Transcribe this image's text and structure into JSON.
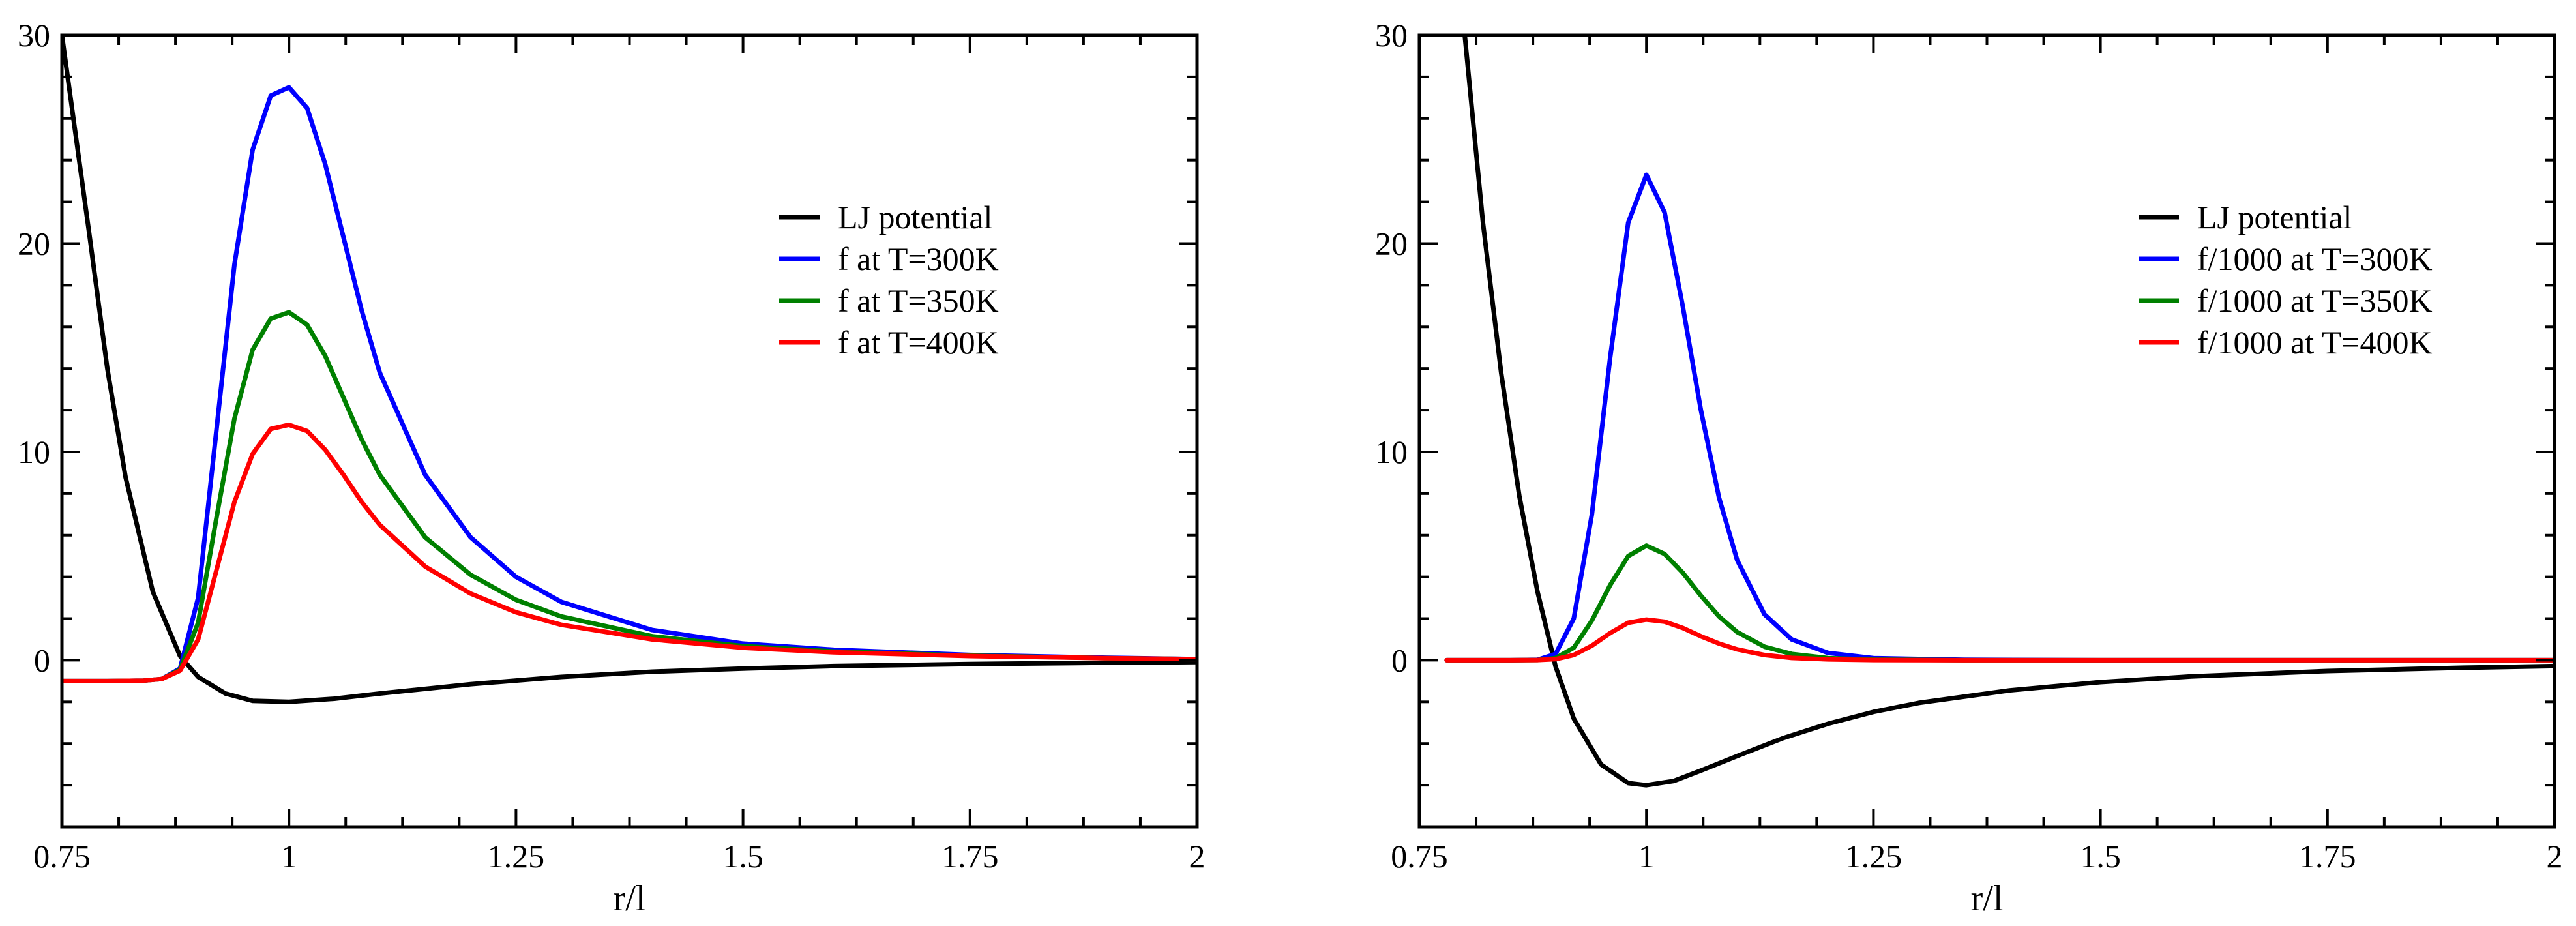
{
  "chart_data": [
    {
      "type": "line",
      "title": "",
      "xlabel": "r/l",
      "ylabel": "",
      "xlim": [
        0.75,
        2
      ],
      "ylim": [
        -8,
        30
      ],
      "xticks": [
        0.75,
        1,
        1.25,
        1.5,
        1.75,
        2
      ],
      "xtick_labels": [
        "0.75",
        "1",
        "1.25",
        "1.5",
        "1.75",
        "2"
      ],
      "yticks": [
        0,
        10,
        20,
        30
      ],
      "ytick_labels": [
        "0",
        "10",
        "20",
        "30"
      ],
      "grid": false,
      "legend_position": "center-right",
      "series": [
        {
          "name": "LJ potential",
          "color": "#000000",
          "x": [
            0.75,
            0.78,
            0.8,
            0.82,
            0.85,
            0.88,
            0.9,
            0.93,
            0.96,
            1.0,
            1.05,
            1.1,
            1.2,
            1.3,
            1.4,
            1.5,
            1.6,
            1.75,
            1.9,
            2.0
          ],
          "y": [
            30.0,
            20.5,
            14.0,
            8.8,
            3.3,
            0.2,
            -0.8,
            -1.6,
            -1.95,
            -2.0,
            -1.85,
            -1.6,
            -1.15,
            -0.8,
            -0.55,
            -0.4,
            -0.28,
            -0.18,
            -0.12,
            -0.09
          ]
        },
        {
          "name": "f at T=300K",
          "color": "#0000ff",
          "x": [
            0.75,
            0.8,
            0.84,
            0.86,
            0.88,
            0.9,
            0.92,
            0.94,
            0.96,
            0.98,
            1.0,
            1.02,
            1.04,
            1.06,
            1.08,
            1.1,
            1.15,
            1.2,
            1.25,
            1.3,
            1.4,
            1.5,
            1.6,
            1.75,
            1.9,
            2.0
          ],
          "y": [
            -1.0,
            -1.0,
            -0.98,
            -0.9,
            -0.4,
            3.0,
            11.0,
            19.0,
            24.5,
            27.1,
            27.5,
            26.5,
            23.8,
            20.3,
            16.8,
            13.8,
            8.9,
            5.9,
            4.0,
            2.8,
            1.45,
            0.8,
            0.5,
            0.25,
            0.12,
            0.05
          ]
        },
        {
          "name": "f at T=350K",
          "color": "#008000",
          "x": [
            0.75,
            0.8,
            0.84,
            0.86,
            0.88,
            0.9,
            0.92,
            0.94,
            0.96,
            0.98,
            1.0,
            1.02,
            1.04,
            1.06,
            1.08,
            1.1,
            1.15,
            1.2,
            1.25,
            1.3,
            1.4,
            1.5,
            1.6,
            1.75,
            1.9,
            2.0
          ],
          "y": [
            -1.0,
            -1.0,
            -0.98,
            -0.9,
            -0.45,
            1.8,
            6.8,
            11.6,
            14.9,
            16.4,
            16.7,
            16.1,
            14.6,
            12.6,
            10.6,
            8.9,
            5.9,
            4.1,
            2.9,
            2.1,
            1.15,
            0.68,
            0.42,
            0.22,
            0.1,
            0.05
          ]
        },
        {
          "name": "f at T=400K",
          "color": "#ff0000",
          "x": [
            0.75,
            0.8,
            0.84,
            0.86,
            0.88,
            0.9,
            0.92,
            0.94,
            0.96,
            0.98,
            1.0,
            1.02,
            1.04,
            1.06,
            1.08,
            1.1,
            1.15,
            1.2,
            1.25,
            1.3,
            1.4,
            1.5,
            1.6,
            1.75,
            1.9,
            2.0
          ],
          "y": [
            -1.0,
            -1.0,
            -0.98,
            -0.9,
            -0.5,
            1.0,
            4.3,
            7.6,
            9.9,
            11.1,
            11.3,
            11.0,
            10.1,
            8.9,
            7.6,
            6.5,
            4.5,
            3.2,
            2.3,
            1.7,
            1.0,
            0.6,
            0.38,
            0.2,
            0.1,
            0.05
          ]
        }
      ]
    },
    {
      "type": "line",
      "title": "",
      "xlabel": "r/l",
      "ylabel": "",
      "xlim": [
        0.75,
        2
      ],
      "ylim": [
        -8,
        30
      ],
      "xticks": [
        0.75,
        1,
        1.25,
        1.5,
        1.75,
        2
      ],
      "xtick_labels": [
        "0.75",
        "1",
        "1.25",
        "1.5",
        "1.75",
        "2"
      ],
      "yticks": [
        0,
        10,
        20,
        30
      ],
      "ytick_labels": [
        "0",
        "10",
        "20",
        "30"
      ],
      "grid": false,
      "legend_position": "center-right",
      "series": [
        {
          "name": "LJ potential",
          "color": "#000000",
          "x": [
            0.8,
            0.82,
            0.84,
            0.86,
            0.88,
            0.9,
            0.92,
            0.95,
            0.98,
            1.0,
            1.03,
            1.06,
            1.1,
            1.15,
            1.2,
            1.25,
            1.3,
            1.4,
            1.5,
            1.6,
            1.75,
            1.9,
            2.0
          ],
          "y": [
            30.0,
            21.0,
            13.8,
            7.9,
            3.3,
            -0.3,
            -2.8,
            -5.0,
            -5.9,
            -6.0,
            -5.8,
            -5.3,
            -4.6,
            -3.75,
            -3.05,
            -2.48,
            -2.05,
            -1.45,
            -1.05,
            -0.78,
            -0.52,
            -0.36,
            -0.28
          ]
        },
        {
          "name": "f/1000 at T=300K",
          "color": "#0000ff",
          "x": [
            0.78,
            0.85,
            0.88,
            0.9,
            0.92,
            0.94,
            0.96,
            0.98,
            1.0,
            1.02,
            1.04,
            1.06,
            1.08,
            1.1,
            1.13,
            1.16,
            1.2,
            1.25,
            1.35,
            1.5,
            1.75,
            2.0
          ],
          "y": [
            0.0,
            0.0,
            0.02,
            0.3,
            2.0,
            7.0,
            14.5,
            21.0,
            23.3,
            21.5,
            17.0,
            12.0,
            7.8,
            4.8,
            2.2,
            1.0,
            0.35,
            0.1,
            0.02,
            0.0,
            0.0,
            0.0
          ]
        },
        {
          "name": "f/1000 at T=350K",
          "color": "#008000",
          "x": [
            0.78,
            0.85,
            0.88,
            0.9,
            0.92,
            0.94,
            0.96,
            0.98,
            1.0,
            1.02,
            1.04,
            1.06,
            1.08,
            1.1,
            1.13,
            1.16,
            1.2,
            1.25,
            1.35,
            1.5,
            1.75,
            2.0
          ],
          "y": [
            0.0,
            0.0,
            0.01,
            0.1,
            0.6,
            1.9,
            3.6,
            5.0,
            5.5,
            5.1,
            4.2,
            3.1,
            2.1,
            1.35,
            0.65,
            0.3,
            0.1,
            0.03,
            0.0,
            0.0,
            0.0,
            0.0
          ]
        },
        {
          "name": "f/1000 at T=400K",
          "color": "#ff0000",
          "x": [
            0.78,
            0.85,
            0.88,
            0.9,
            0.92,
            0.94,
            0.96,
            0.98,
            1.0,
            1.02,
            1.04,
            1.06,
            1.08,
            1.1,
            1.13,
            1.16,
            1.2,
            1.25,
            1.35,
            1.5,
            1.75,
            2.0
          ],
          "y": [
            0.0,
            0.0,
            0.01,
            0.05,
            0.25,
            0.7,
            1.3,
            1.8,
            1.95,
            1.85,
            1.55,
            1.15,
            0.8,
            0.52,
            0.25,
            0.11,
            0.04,
            0.01,
            0.0,
            0.0,
            0.0,
            0.0
          ]
        }
      ]
    }
  ]
}
